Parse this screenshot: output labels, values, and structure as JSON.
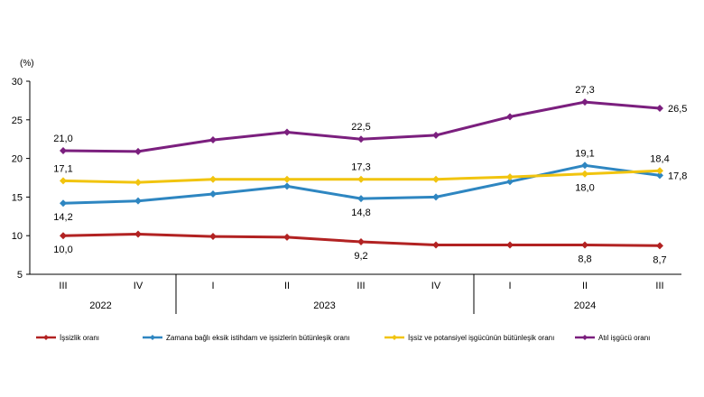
{
  "chart_data": {
    "type": "line",
    "unit_label": "(%)",
    "ylim": [
      5,
      30
    ],
    "yticks": [
      "5",
      "10",
      "15",
      "20",
      "25",
      "30"
    ],
    "quarters": [
      "III",
      "IV",
      "I",
      "II",
      "III",
      "IV",
      "I",
      "II",
      "III"
    ],
    "years": [
      {
        "label": "2022",
        "span": [
          0,
          1
        ]
      },
      {
        "label": "2023",
        "span": [
          2,
          5
        ]
      },
      {
        "label": "2024",
        "span": [
          6,
          8
        ]
      }
    ],
    "series": [
      {
        "name": "İşsizlik oranı",
        "color": "#b22222",
        "values": [
          10.0,
          10.2,
          9.9,
          9.8,
          9.2,
          8.8,
          8.8,
          8.8,
          8.7
        ],
        "labels": [
          {
            "i": 0,
            "text": "10,0",
            "pos": "below"
          },
          {
            "i": 4,
            "text": "9,2",
            "pos": "below"
          },
          {
            "i": 7,
            "text": "8,8",
            "pos": "below"
          },
          {
            "i": 8,
            "text": "8,7",
            "pos": "below"
          }
        ]
      },
      {
        "name": "Zamana bağlı eksik istihdam ve işsizlerin bütünleşik oranı",
        "color": "#2e86c1",
        "values": [
          14.2,
          14.5,
          15.4,
          16.4,
          14.8,
          15.0,
          17.0,
          19.1,
          17.8
        ],
        "labels": [
          {
            "i": 0,
            "text": "14,2",
            "pos": "below"
          },
          {
            "i": 4,
            "text": "14,8",
            "pos": "below"
          },
          {
            "i": 7,
            "text": "19,1",
            "pos": "above"
          },
          {
            "i": 8,
            "text": "17,8",
            "pos": "right"
          }
        ]
      },
      {
        "name": "İşsiz ve potansiyel işgücünün bütünleşik oranı",
        "color": "#f1c40f",
        "values": [
          17.1,
          16.9,
          17.3,
          17.3,
          17.3,
          17.3,
          17.6,
          18.0,
          18.4
        ],
        "labels": [
          {
            "i": 0,
            "text": "17,1",
            "pos": "above"
          },
          {
            "i": 4,
            "text": "17,3",
            "pos": "above"
          },
          {
            "i": 7,
            "text": "18,0",
            "pos": "below"
          },
          {
            "i": 8,
            "text": "18,4",
            "pos": "above"
          }
        ]
      },
      {
        "name": "Atıl işgücü oranı",
        "color": "#7b1f7e",
        "values": [
          21.0,
          20.9,
          22.4,
          23.4,
          22.5,
          23.0,
          25.4,
          27.3,
          26.5
        ],
        "labels": [
          {
            "i": 0,
            "text": "21,0",
            "pos": "above"
          },
          {
            "i": 4,
            "text": "22,5",
            "pos": "above"
          },
          {
            "i": 7,
            "text": "27,3",
            "pos": "above"
          },
          {
            "i": 8,
            "text": "26,5",
            "pos": "right"
          }
        ]
      }
    ]
  }
}
